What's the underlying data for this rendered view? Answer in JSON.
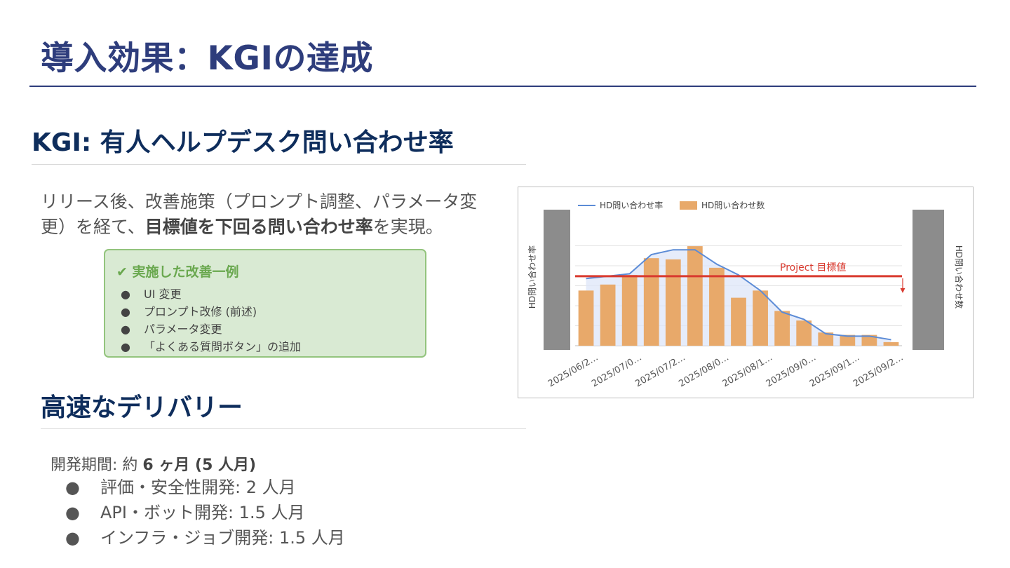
{
  "title": "導入効果：KGIの達成",
  "kgi": {
    "heading": "KGI: 有人ヘルプデスク問い合わせ率",
    "body_prefix": "リリース後、改善施策（プロンプト調整、パラメータ変更）を経て、",
    "body_bold": "目標値を下回る問い合わせ率",
    "body_suffix": "を実現。",
    "improvements": {
      "title": "✔ 実施した改善一例",
      "items": [
        "UI 変更",
        "プロンプト改修 (前述)",
        "パラメータ変更",
        "「よくある質問ボタン」の追加"
      ]
    }
  },
  "delivery": {
    "heading": "高速なデリバリー",
    "period_label": "開発期間: 約 ",
    "period_value": "6 ヶ月 (5 人月)",
    "items": [
      "評価・安全性開発: 2 人月",
      "API・ボット開発: 1.5 人月",
      "インフラ・ジョブ開発: 1.5 人月"
    ]
  },
  "bullet_char": "●",
  "chart_data": {
    "type": "bar",
    "title": "",
    "series": [
      {
        "name": "HD問い合わせ率",
        "kind": "line",
        "values": [
          56,
          58,
          60,
          76,
          80,
          80,
          68,
          59,
          46,
          28,
          22,
          10,
          8,
          8,
          5
        ]
      },
      {
        "name": "HD問い合わせ数",
        "kind": "bar",
        "values": [
          46,
          51,
          59,
          73,
          72,
          83,
          65,
          40,
          46,
          29,
          21,
          11,
          9,
          9,
          3
        ]
      }
    ],
    "x_tick_labels": [
      "2025/06/2…",
      "2025/07/0…",
      "2025/07/2…",
      "2025/08/0…",
      "2025/08/1…",
      "2025/09/0…",
      "2025/09/1…",
      "2025/09/2…"
    ],
    "ylabel_left": "HD問い合わせ率",
    "ylabel_right": "HD問い合わせ数",
    "ylim": [
      0,
      100
    ],
    "target": {
      "label": "Project 目標値",
      "value": 58
    },
    "grid": true,
    "legend_position": "top-left",
    "colors": {
      "line": "#5b8bd6",
      "bar": "#e8a96a",
      "target": "#d93a2f",
      "axis_block": "#8c8c8c",
      "fill": "#dde6f8"
    }
  }
}
